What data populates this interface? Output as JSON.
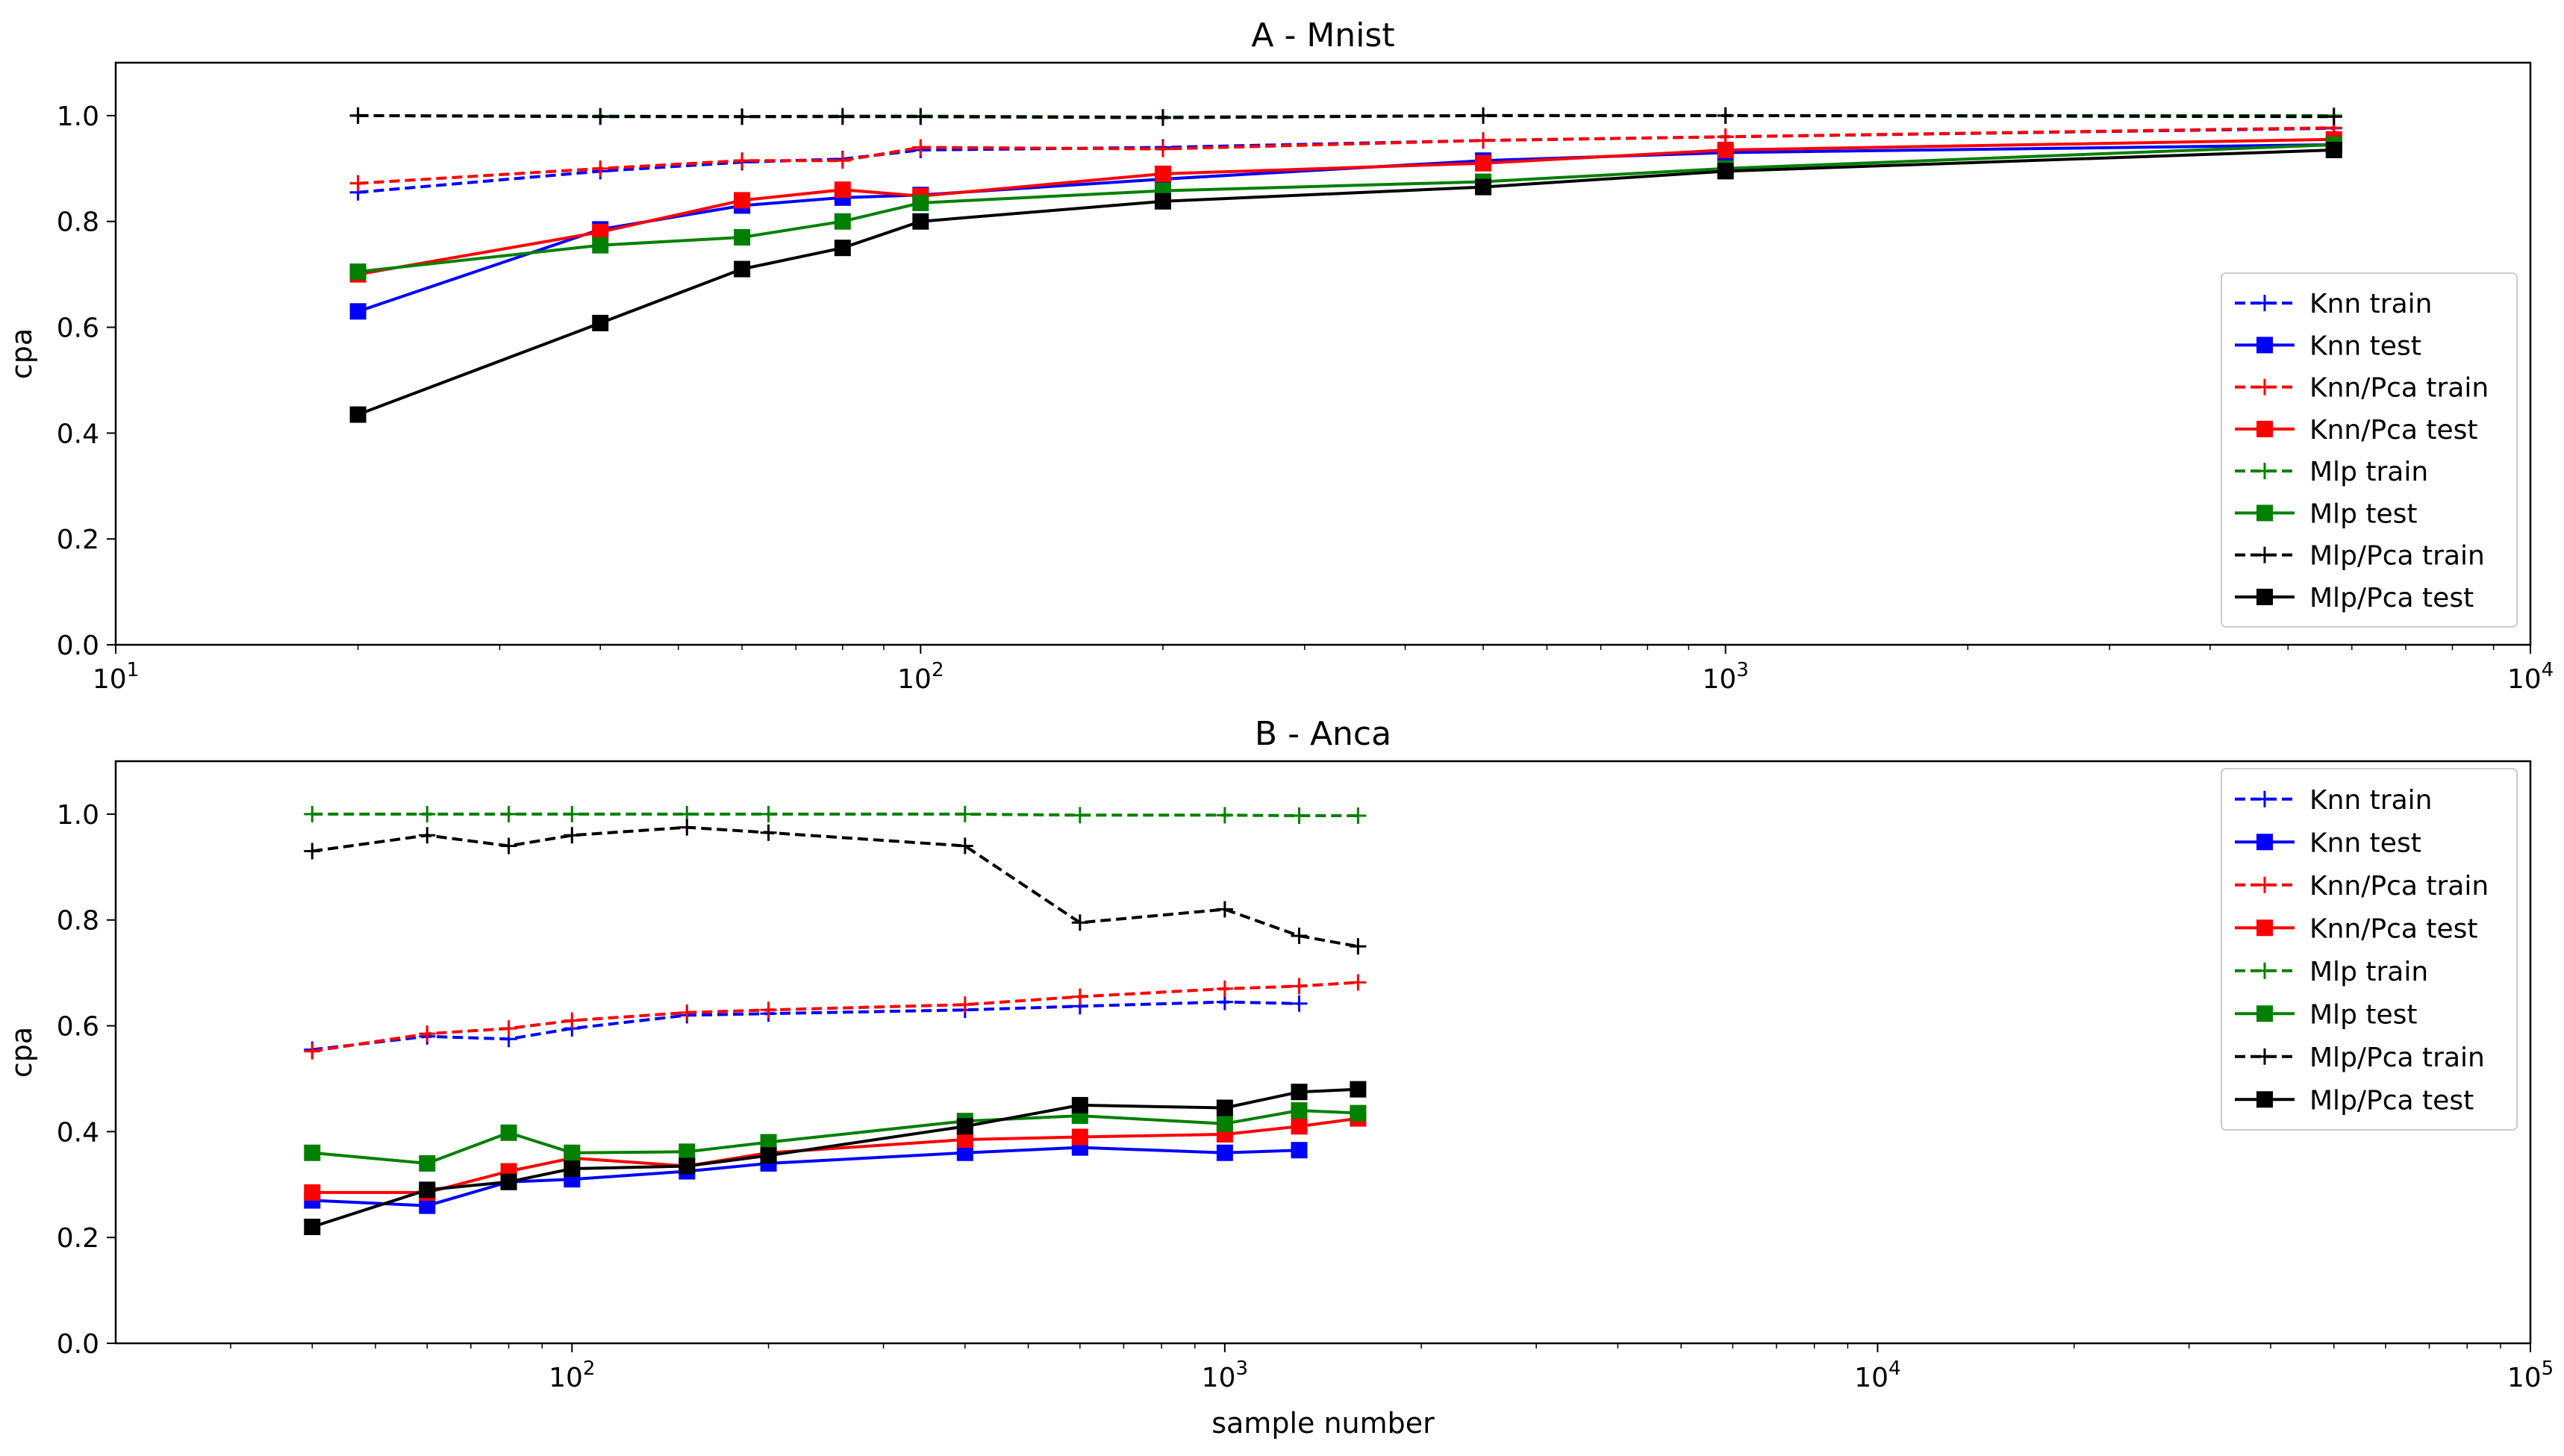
{
  "chart_data": [
    {
      "type": "line",
      "title": "A - Mnist",
      "xlabel": "",
      "ylabel": "cpa",
      "xscale": "log",
      "xlim": [
        10,
        10000
      ],
      "ylim": [
        0,
        1.1
      ],
      "yticks": [
        0.0,
        0.2,
        0.4,
        0.6,
        0.8,
        1.0
      ],
      "ytick_labels": [
        "0.0",
        "0.2",
        "0.4",
        "0.6",
        "0.8",
        "1.0"
      ],
      "xticks": [
        {
          "value": 10,
          "base": "10",
          "exp": "1"
        },
        {
          "value": 100,
          "base": "10",
          "exp": "2"
        },
        {
          "value": 1000,
          "base": "10",
          "exp": "3"
        },
        {
          "value": 10000,
          "base": "10",
          "exp": "4"
        }
      ],
      "legend_position": "center-right",
      "grid": false,
      "series": [
        {
          "name": "Knn train",
          "color": "#0000ff",
          "style": "dashed",
          "marker": "plus",
          "x": [
            20,
            40,
            60,
            80,
            100,
            200,
            500,
            1000,
            5700
          ],
          "y": [
            0.855,
            0.895,
            0.912,
            0.918,
            0.935,
            0.94,
            0.953,
            0.96,
            0.976
          ]
        },
        {
          "name": "Knn test",
          "color": "#0000ff",
          "style": "solid",
          "marker": "square",
          "x": [
            20,
            40,
            60,
            80,
            100,
            200,
            500,
            1000,
            5700
          ],
          "y": [
            0.63,
            0.785,
            0.83,
            0.845,
            0.85,
            0.88,
            0.915,
            0.93,
            0.945
          ]
        },
        {
          "name": "Knn/Pca train",
          "color": "#ff0000",
          "style": "dashed",
          "marker": "plus",
          "x": [
            20,
            40,
            60,
            80,
            100,
            200,
            500,
            1000,
            5700
          ],
          "y": [
            0.872,
            0.9,
            0.915,
            0.915,
            0.94,
            0.937,
            0.953,
            0.96,
            0.977
          ]
        },
        {
          "name": "Knn/Pca test",
          "color": "#ff0000",
          "style": "solid",
          "marker": "square",
          "x": [
            20,
            40,
            60,
            80,
            100,
            200,
            500,
            1000,
            5700
          ],
          "y": [
            0.7,
            0.78,
            0.84,
            0.86,
            0.848,
            0.89,
            0.91,
            0.935,
            0.955
          ]
        },
        {
          "name": "Mlp train",
          "color": "#008000",
          "style": "dashed",
          "marker": "plus",
          "x": [
            20,
            40,
            60,
            80,
            100,
            200,
            500,
            1000,
            5700
          ],
          "y": [
            1.0,
            0.999,
            0.998,
            0.999,
            0.999,
            0.997,
            1.0,
            1.0,
            1.0
          ]
        },
        {
          "name": "Mlp test",
          "color": "#008000",
          "style": "solid",
          "marker": "square",
          "x": [
            20,
            40,
            60,
            80,
            100,
            200,
            500,
            1000,
            5700
          ],
          "y": [
            0.705,
            0.755,
            0.77,
            0.8,
            0.835,
            0.858,
            0.875,
            0.9,
            0.945
          ]
        },
        {
          "name": "Mlp/Pca train",
          "color": "#000000",
          "style": "dashed",
          "marker": "plus",
          "x": [
            20,
            40,
            60,
            80,
            100,
            200,
            500,
            1000,
            5700
          ],
          "y": [
            1.0,
            0.998,
            0.998,
            0.998,
            0.998,
            0.996,
            1.0,
            1.0,
            0.998
          ]
        },
        {
          "name": "Mlp/Pca test",
          "color": "#000000",
          "style": "solid",
          "marker": "square",
          "x": [
            20,
            40,
            60,
            80,
            100,
            200,
            500,
            1000,
            5700
          ],
          "y": [
            0.435,
            0.608,
            0.71,
            0.75,
            0.8,
            0.838,
            0.865,
            0.895,
            0.935
          ]
        }
      ]
    },
    {
      "type": "line",
      "title": "B - Anca",
      "xlabel": "sample number",
      "ylabel": "cpa",
      "xscale": "log",
      "xlim": [
        20,
        100000
      ],
      "ylim": [
        0,
        1.1
      ],
      "yticks": [
        0.0,
        0.2,
        0.4,
        0.6,
        0.8,
        1.0
      ],
      "ytick_labels": [
        "0.0",
        "0.2",
        "0.4",
        "0.6",
        "0.8",
        "1.0"
      ],
      "xticks": [
        {
          "value": 100,
          "base": "10",
          "exp": "2"
        },
        {
          "value": 1000,
          "base": "10",
          "exp": "3"
        },
        {
          "value": 10000,
          "base": "10",
          "exp": "4"
        },
        {
          "value": 100000,
          "base": "10",
          "exp": "5"
        }
      ],
      "legend_position": "upper-right",
      "grid": false,
      "series": [
        {
          "name": "Knn train",
          "color": "#0000ff",
          "style": "dashed",
          "marker": "plus",
          "x": [
            40,
            60,
            80,
            100,
            150,
            200,
            400,
            600,
            1000,
            1300
          ],
          "y": [
            0.555,
            0.58,
            0.575,
            0.595,
            0.62,
            0.623,
            0.63,
            0.637,
            0.645,
            0.642
          ]
        },
        {
          "name": "Knn test",
          "color": "#0000ff",
          "style": "solid",
          "marker": "square",
          "x": [
            40,
            60,
            80,
            100,
            150,
            200,
            400,
            600,
            1000,
            1300
          ],
          "y": [
            0.27,
            0.26,
            0.305,
            0.31,
            0.325,
            0.34,
            0.36,
            0.37,
            0.36,
            0.365
          ]
        },
        {
          "name": "Knn/Pca train",
          "color": "#ff0000",
          "style": "dashed",
          "marker": "plus",
          "x": [
            40,
            60,
            80,
            100,
            150,
            200,
            400,
            600,
            1000,
            1300,
            1600
          ],
          "y": [
            0.552,
            0.585,
            0.595,
            0.61,
            0.625,
            0.63,
            0.64,
            0.655,
            0.67,
            0.675,
            0.682
          ]
        },
        {
          "name": "Knn/Pca test",
          "color": "#ff0000",
          "style": "solid",
          "marker": "square",
          "x": [
            40,
            60,
            80,
            100,
            150,
            200,
            400,
            600,
            1000,
            1300,
            1600
          ],
          "y": [
            0.285,
            0.285,
            0.325,
            0.35,
            0.335,
            0.36,
            0.385,
            0.39,
            0.395,
            0.41,
            0.425
          ]
        },
        {
          "name": "Mlp train",
          "color": "#008000",
          "style": "dashed",
          "marker": "plus",
          "x": [
            40,
            60,
            80,
            100,
            150,
            200,
            400,
            600,
            1000,
            1300,
            1600
          ],
          "y": [
            1.0,
            1.0,
            1.0,
            1.0,
            1.0,
            1.0,
            1.0,
            0.998,
            0.998,
            0.997,
            0.997
          ]
        },
        {
          "name": "Mlp test",
          "color": "#008000",
          "style": "solid",
          "marker": "square",
          "x": [
            40,
            60,
            80,
            100,
            150,
            200,
            400,
            600,
            1000,
            1300,
            1600
          ],
          "y": [
            0.36,
            0.34,
            0.398,
            0.36,
            0.362,
            0.38,
            0.42,
            0.43,
            0.415,
            0.44,
            0.435
          ]
        },
        {
          "name": "Mlp/Pca train",
          "color": "#000000",
          "style": "dashed",
          "marker": "plus",
          "x": [
            40,
            60,
            80,
            100,
            150,
            200,
            400,
            600,
            1000,
            1300,
            1600
          ],
          "y": [
            0.93,
            0.96,
            0.94,
            0.96,
            0.975,
            0.965,
            0.94,
            0.795,
            0.82,
            0.77,
            0.75
          ]
        },
        {
          "name": "Mlp/Pca test",
          "color": "#000000",
          "style": "solid",
          "marker": "square",
          "x": [
            40,
            60,
            80,
            100,
            150,
            200,
            400,
            600,
            1000,
            1300,
            1600
          ],
          "y": [
            0.22,
            0.29,
            0.305,
            0.33,
            0.335,
            0.355,
            0.41,
            0.45,
            0.445,
            0.475,
            0.48
          ]
        }
      ]
    }
  ]
}
